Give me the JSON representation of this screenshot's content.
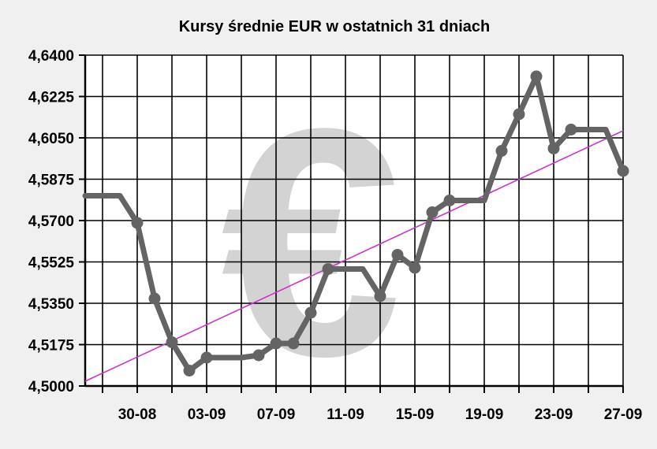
{
  "chart_data": {
    "type": "line",
    "title": "Kursy średnie EUR w ostatnich 31 dniach",
    "xlabel": "",
    "ylabel": "",
    "ylim": [
      4.5,
      4.64
    ],
    "y_tick_labels": [
      "4,5000",
      "4,5175",
      "4,5350",
      "4,5525",
      "4,5700",
      "4,5875",
      "4,6050",
      "4,6225",
      "4,6400"
    ],
    "x_tick_labels": [
      "30-08",
      "03-09",
      "07-09",
      "11-09",
      "15-09",
      "19-09",
      "23-09",
      "27-09"
    ],
    "x_range": [
      "2021-08-27",
      "2021-09-27"
    ],
    "grid": true,
    "series": [
      {
        "values": [
          {
            "x": "2021-08-27",
            "y": 4.5805,
            "marker": false
          },
          {
            "x": "2021-08-28",
            "y": 4.5805,
            "marker": false
          },
          {
            "x": "2021-08-29",
            "y": 4.5805,
            "marker": false
          },
          {
            "x": "2021-08-30",
            "y": 4.569,
            "marker": true
          },
          {
            "x": "2021-08-31",
            "y": 4.537,
            "marker": true
          },
          {
            "x": "2021-09-01",
            "y": 4.5185,
            "marker": true
          },
          {
            "x": "2021-09-02",
            "y": 4.5065,
            "marker": true
          },
          {
            "x": "2021-09-03",
            "y": 4.512,
            "marker": true
          },
          {
            "x": "2021-09-04",
            "y": 4.512,
            "marker": false
          },
          {
            "x": "2021-09-05",
            "y": 4.512,
            "marker": false
          },
          {
            "x": "2021-09-06",
            "y": 4.513,
            "marker": true
          },
          {
            "x": "2021-09-07",
            "y": 4.518,
            "marker": true
          },
          {
            "x": "2021-09-08",
            "y": 4.518,
            "marker": true
          },
          {
            "x": "2021-09-09",
            "y": 4.531,
            "marker": true
          },
          {
            "x": "2021-09-10",
            "y": 4.5495,
            "marker": true
          },
          {
            "x": "2021-09-11",
            "y": 4.5495,
            "marker": false
          },
          {
            "x": "2021-09-12",
            "y": 4.5495,
            "marker": false
          },
          {
            "x": "2021-09-13",
            "y": 4.538,
            "marker": true
          },
          {
            "x": "2021-09-14",
            "y": 4.5555,
            "marker": true
          },
          {
            "x": "2021-09-15",
            "y": 4.55,
            "marker": true
          },
          {
            "x": "2021-09-16",
            "y": 4.5735,
            "marker": true
          },
          {
            "x": "2021-09-17",
            "y": 4.5785,
            "marker": true
          },
          {
            "x": "2021-09-18",
            "y": 4.5785,
            "marker": false
          },
          {
            "x": "2021-09-19",
            "y": 4.5785,
            "marker": false
          },
          {
            "x": "2021-09-20",
            "y": 4.5995,
            "marker": true
          },
          {
            "x": "2021-09-21",
            "y": 4.615,
            "marker": true
          },
          {
            "x": "2021-09-22",
            "y": 4.631,
            "marker": true
          },
          {
            "x": "2021-09-23",
            "y": 4.6005,
            "marker": true
          },
          {
            "x": "2021-09-24",
            "y": 4.6085,
            "marker": true
          },
          {
            "x": "2021-09-25",
            "y": 4.6085,
            "marker": false
          },
          {
            "x": "2021-09-26",
            "y": 4.6085,
            "marker": false
          },
          {
            "x": "2021-09-27",
            "y": 4.591,
            "marker": true
          }
        ]
      }
    ],
    "trend_line": {
      "start": {
        "x": "2021-08-27",
        "y": 4.502
      },
      "end": {
        "x": "2021-09-27",
        "y": 4.608
      }
    },
    "colors": {
      "background": "#f0f0f0",
      "plot_background": "#ffffff",
      "grid": "#000000",
      "series_line": "#646464",
      "trend_line": "#cc33cc",
      "watermark": "#d3d3d3",
      "text": "#000000"
    },
    "watermark_icon": "euro-sign-icon",
    "watermark_text": "€"
  }
}
